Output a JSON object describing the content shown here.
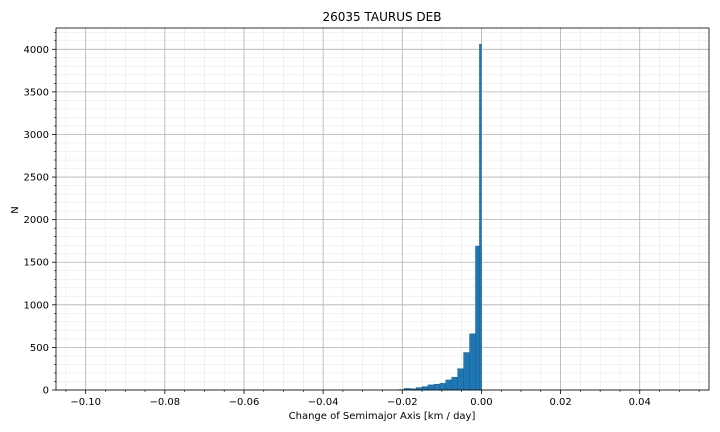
{
  "chart_data": {
    "type": "bar",
    "title": "26035 TAURUS DEB",
    "xlabel": "Change of Semimajor Axis [km / day]",
    "ylabel": "N",
    "xlim": [
      -0.1075,
      0.0575
    ],
    "ylim": [
      0,
      4250
    ],
    "x_ticks": [
      -0.1,
      -0.08,
      -0.06,
      -0.04,
      -0.02,
      0.0,
      0.02,
      0.04
    ],
    "x_tick_labels": [
      "−0.10",
      "−0.08",
      "−0.06",
      "−0.04",
      "−0.02",
      "0.00",
      "0.02",
      "0.04"
    ],
    "y_ticks": [
      0,
      500,
      1000,
      1500,
      2000,
      2500,
      3000,
      3500,
      4000
    ],
    "y_tick_labels": [
      "0",
      "500",
      "1000",
      "1500",
      "2000",
      "2500",
      "3000",
      "3500",
      "4000"
    ],
    "grid": true,
    "minor_grid": true,
    "bar_color": "#1f77b4",
    "bar_edge_color": "#185f93",
    "bin_width": 0.0015,
    "bins": [
      {
        "left": -0.021,
        "count": 4
      },
      {
        "left": -0.0195,
        "count": 18
      },
      {
        "left": -0.018,
        "count": 14
      },
      {
        "left": -0.0165,
        "count": 28
      },
      {
        "left": -0.015,
        "count": 40
      },
      {
        "left": -0.0135,
        "count": 60
      },
      {
        "left": -0.012,
        "count": 68
      },
      {
        "left": -0.0105,
        "count": 78
      },
      {
        "left": -0.009,
        "count": 118
      },
      {
        "left": -0.0075,
        "count": 150
      },
      {
        "left": -0.006,
        "count": 250
      },
      {
        "left": -0.0045,
        "count": 440
      },
      {
        "left": -0.003,
        "count": 660
      },
      {
        "left": -0.0015,
        "count": 1690
      },
      {
        "left": -0.0005,
        "count": 4060
      }
    ]
  }
}
